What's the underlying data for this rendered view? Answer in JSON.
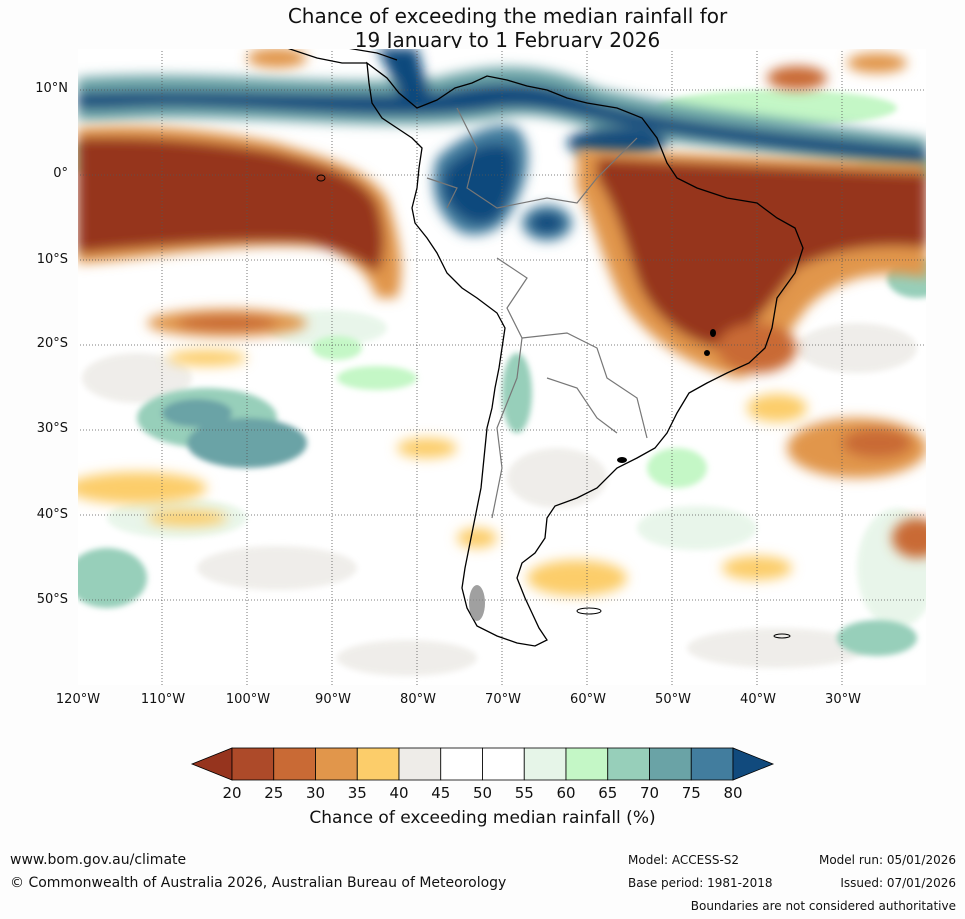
{
  "title": {
    "line1": "Chance of exceeding the median rainfall for",
    "line2": "19 January to 1 February 2026"
  },
  "map": {
    "lat_labels": [
      "10°N",
      "0°",
      "10°S",
      "20°S",
      "30°S",
      "40°S",
      "50°S"
    ],
    "lon_labels": [
      "120°W",
      "110°W",
      "100°W",
      "90°W",
      "80°W",
      "70°W",
      "60°W",
      "50°W",
      "40°W",
      "30°W"
    ]
  },
  "colorbar": {
    "ticks": [
      "20",
      "25",
      "30",
      "35",
      "40",
      "45",
      "50",
      "55",
      "60",
      "65",
      "70",
      "75",
      "80"
    ],
    "colors": [
      "#96341e",
      "#ad4a29",
      "#c96a35",
      "#e1964b",
      "#fccd6a",
      "#eeece8",
      "#ffffff",
      "#ffffff",
      "#e6f5e8",
      "#c4f7c6",
      "#97cfba",
      "#6aa3a6",
      "#427d9e",
      "#114a7d"
    ],
    "label": "Chance of exceeding median rainfall (%)"
  },
  "footer": {
    "website": "www.bom.gov.au/climate",
    "copyright": "© Commonwealth of Australia 2026, Australian Bureau of Meteorology",
    "model": "Model: ACCESS-S2",
    "base_period": "Base period: 1981-2018",
    "model_run": "Model run: 05/01/2026",
    "issued": "Issued: 07/01/2026",
    "disclaimer": "Boundaries are not considered authoritative"
  }
}
